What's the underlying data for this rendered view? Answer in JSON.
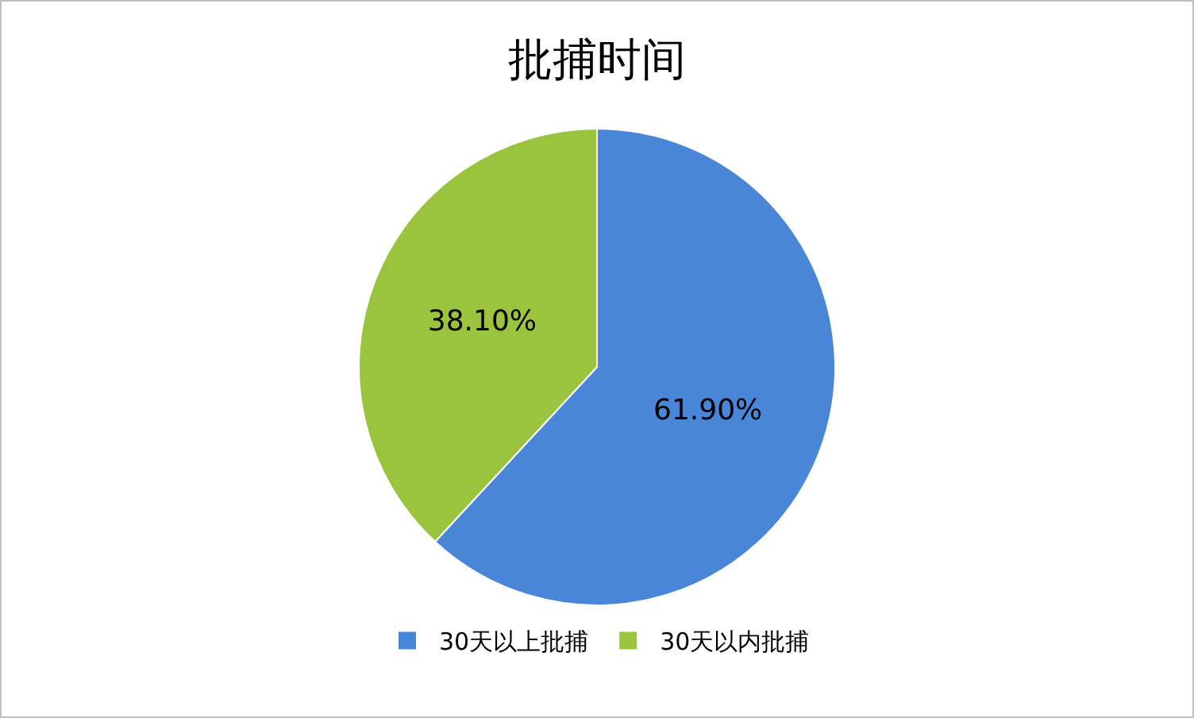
{
  "chart_data": {
    "type": "pie",
    "title": "批捕时间",
    "categories": [
      "30天以上批捕",
      "30天以内批捕"
    ],
    "values": [
      61.9,
      38.1
    ],
    "colors": [
      "#4a86d8",
      "#9bc43e"
    ],
    "value_labels": [
      "61.90%",
      "38.10%"
    ],
    "legend": "bottom"
  }
}
